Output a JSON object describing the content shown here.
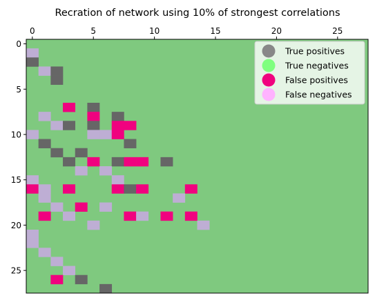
{
  "chart_data": {
    "type": "heatmap",
    "title": "Recration of network using 10% of strongest correlations",
    "xlabel": "",
    "ylabel": "",
    "n": 28,
    "xlim": [
      -0.5,
      27.5
    ],
    "ylim": [
      27.5,
      -0.5
    ],
    "x_axis_position": "top",
    "x_ticks": [
      0,
      5,
      10,
      15,
      20,
      25
    ],
    "y_ticks": [
      0,
      5,
      10,
      15,
      20,
      25
    ],
    "grid": false,
    "legend_position": "top-right",
    "default_category": "True negatives",
    "categories": [
      {
        "key": "tp",
        "label": "True positives",
        "cell_color": "#666666",
        "marker_color": "#888888"
      },
      {
        "key": "tn",
        "label": "True negatives",
        "cell_color": "#7fc97f",
        "marker_color": "#7fff7f"
      },
      {
        "key": "fp",
        "label": "False positives",
        "cell_color": "#f0027f",
        "marker_color": "#f0027f"
      },
      {
        "key": "fn",
        "label": "False negatives",
        "cell_color": "#beaed4",
        "marker_color": "#ffb3ff"
      }
    ],
    "cells": [
      {
        "row": 1,
        "col": 0,
        "category": "fn"
      },
      {
        "row": 2,
        "col": 0,
        "category": "tp"
      },
      {
        "row": 3,
        "col": 1,
        "category": "fn"
      },
      {
        "row": 3,
        "col": 2,
        "category": "tp"
      },
      {
        "row": 4,
        "col": 2,
        "category": "tp"
      },
      {
        "row": 7,
        "col": 3,
        "category": "fp"
      },
      {
        "row": 7,
        "col": 5,
        "category": "tp"
      },
      {
        "row": 8,
        "col": 1,
        "category": "fn"
      },
      {
        "row": 8,
        "col": 5,
        "category": "fp"
      },
      {
        "row": 8,
        "col": 7,
        "category": "tp"
      },
      {
        "row": 9,
        "col": 2,
        "category": "fn"
      },
      {
        "row": 9,
        "col": 3,
        "category": "tp"
      },
      {
        "row": 9,
        "col": 5,
        "category": "tp"
      },
      {
        "row": 9,
        "col": 7,
        "category": "fp"
      },
      {
        "row": 9,
        "col": 8,
        "category": "fp"
      },
      {
        "row": 10,
        "col": 0,
        "category": "fn"
      },
      {
        "row": 10,
        "col": 5,
        "category": "fn"
      },
      {
        "row": 10,
        "col": 6,
        "category": "fn"
      },
      {
        "row": 10,
        "col": 7,
        "category": "fp"
      },
      {
        "row": 11,
        "col": 1,
        "category": "tp"
      },
      {
        "row": 11,
        "col": 8,
        "category": "tp"
      },
      {
        "row": 12,
        "col": 2,
        "category": "tp"
      },
      {
        "row": 12,
        "col": 4,
        "category": "tp"
      },
      {
        "row": 13,
        "col": 3,
        "category": "tp"
      },
      {
        "row": 13,
        "col": 5,
        "category": "fp"
      },
      {
        "row": 13,
        "col": 7,
        "category": "tp"
      },
      {
        "row": 13,
        "col": 8,
        "category": "fp"
      },
      {
        "row": 13,
        "col": 9,
        "category": "fp"
      },
      {
        "row": 13,
        "col": 11,
        "category": "tp"
      },
      {
        "row": 14,
        "col": 4,
        "category": "fn"
      },
      {
        "row": 14,
        "col": 6,
        "category": "fn"
      },
      {
        "row": 15,
        "col": 0,
        "category": "fn"
      },
      {
        "row": 15,
        "col": 7,
        "category": "fn"
      },
      {
        "row": 16,
        "col": 0,
        "category": "fp"
      },
      {
        "row": 16,
        "col": 1,
        "category": "fn"
      },
      {
        "row": 16,
        "col": 3,
        "category": "fp"
      },
      {
        "row": 16,
        "col": 7,
        "category": "fp"
      },
      {
        "row": 16,
        "col": 8,
        "category": "tp"
      },
      {
        "row": 16,
        "col": 9,
        "category": "fp"
      },
      {
        "row": 16,
        "col": 13,
        "category": "fp"
      },
      {
        "row": 17,
        "col": 1,
        "category": "fn"
      },
      {
        "row": 17,
        "col": 12,
        "category": "fn"
      },
      {
        "row": 18,
        "col": 2,
        "category": "fn"
      },
      {
        "row": 18,
        "col": 4,
        "category": "fp"
      },
      {
        "row": 18,
        "col": 6,
        "category": "fn"
      },
      {
        "row": 19,
        "col": 1,
        "category": "fp"
      },
      {
        "row": 19,
        "col": 3,
        "category": "fn"
      },
      {
        "row": 19,
        "col": 8,
        "category": "fp"
      },
      {
        "row": 19,
        "col": 9,
        "category": "fn"
      },
      {
        "row": 19,
        "col": 11,
        "category": "fp"
      },
      {
        "row": 19,
        "col": 13,
        "category": "fp"
      },
      {
        "row": 20,
        "col": 5,
        "category": "fn"
      },
      {
        "row": 20,
        "col": 14,
        "category": "fn"
      },
      {
        "row": 21,
        "col": 0,
        "category": "fn"
      },
      {
        "row": 22,
        "col": 0,
        "category": "fn"
      },
      {
        "row": 23,
        "col": 1,
        "category": "fn"
      },
      {
        "row": 24,
        "col": 2,
        "category": "fn"
      },
      {
        "row": 25,
        "col": 3,
        "category": "fn"
      },
      {
        "row": 26,
        "col": 2,
        "category": "fp"
      },
      {
        "row": 26,
        "col": 4,
        "category": "tp"
      },
      {
        "row": 27,
        "col": 6,
        "category": "tp"
      }
    ]
  }
}
